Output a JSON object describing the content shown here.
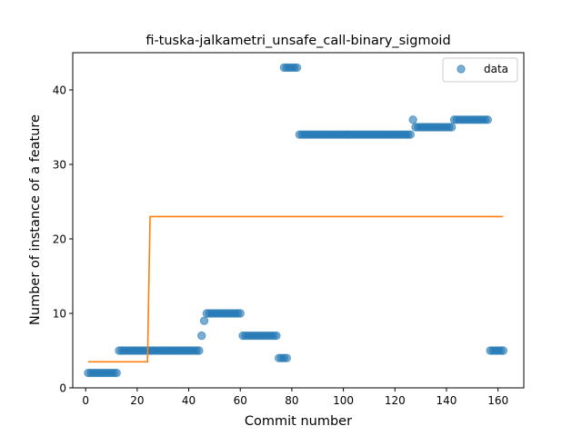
{
  "chart_data": {
    "type": "scatter",
    "title": "fi-tuska-jalkametri_unsafe_call-binary_sigmoid",
    "xlabel": "Commit number",
    "ylabel": "Number of instance of a feature",
    "xlim": [
      -5,
      170
    ],
    "ylim": [
      0,
      45
    ],
    "xticks": [
      0,
      20,
      40,
      60,
      80,
      100,
      120,
      140,
      160
    ],
    "yticks": [
      0,
      10,
      20,
      30,
      40
    ],
    "grid": false,
    "legend_position": "top-right",
    "colors": {
      "data": "#1f77b4",
      "fit": "#ff7f0e"
    },
    "series": [
      {
        "name": "data",
        "kind": "scatter",
        "runs": [
          {
            "x_start": 1,
            "x_end": 12,
            "y": 2
          },
          {
            "x_start": 13,
            "x_end": 44,
            "y": 5
          },
          {
            "x_start": 45,
            "x_end": 45,
            "y": 7
          },
          {
            "x_start": 46,
            "x_end": 46,
            "y": 9
          },
          {
            "x_start": 47,
            "x_end": 60,
            "y": 10
          },
          {
            "x_start": 61,
            "x_end": 74,
            "y": 7
          },
          {
            "x_start": 75,
            "x_end": 78,
            "y": 4
          },
          {
            "x_start": 77,
            "x_end": 82,
            "y": 43
          },
          {
            "x_start": 83,
            "x_end": 126,
            "y": 34
          },
          {
            "x_start": 127,
            "x_end": 127,
            "y": 36
          },
          {
            "x_start": 128,
            "x_end": 142,
            "y": 35
          },
          {
            "x_start": 143,
            "x_end": 156,
            "y": 36
          },
          {
            "x_start": 157,
            "x_end": 162,
            "y": 5
          }
        ]
      },
      {
        "name": "",
        "kind": "line",
        "points": [
          [
            1,
            3.5
          ],
          [
            24,
            3.5
          ],
          [
            25,
            23
          ],
          [
            162,
            23
          ]
        ]
      }
    ]
  }
}
